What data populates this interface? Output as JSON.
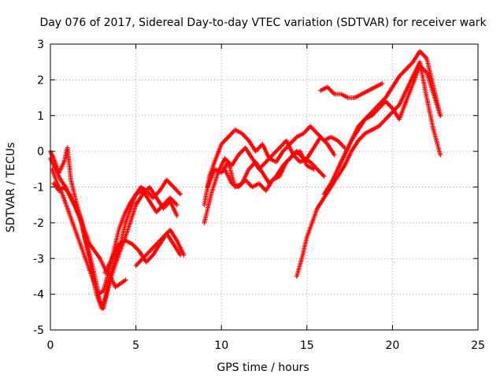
{
  "chart_data": {
    "type": "scatter",
    "title": "Day 076 of 2017, Sidereal Day-to-day VTEC variation (SDTVAR) for receiver wark",
    "xlabel": "GPS time / hours",
    "ylabel": "SDTVAR / TECUs",
    "xlim": [
      0,
      25
    ],
    "ylim": [
      -5,
      3
    ],
    "xticks": [
      0,
      5,
      10,
      15,
      20,
      25
    ],
    "yticks": [
      -5,
      -4,
      -3,
      -2,
      -1,
      0,
      1,
      2,
      3
    ],
    "grid": true,
    "marker": "+",
    "color": "#ff0000",
    "series": [
      {
        "x": [
          0.0,
          0.3,
          0.6,
          0.9,
          1.2,
          1.5,
          1.8,
          2.1,
          2.4,
          2.7,
          3.0,
          3.2,
          3.5,
          3.8,
          4.1,
          4.4,
          4.7,
          5.0,
          5.3,
          5.6,
          6.0,
          6.4,
          6.8,
          7.2,
          7.6
        ],
        "y": [
          -0.2,
          -0.5,
          -0.8,
          -1.0,
          -1.3,
          -1.6,
          -2.0,
          -2.6,
          -3.3,
          -4.0,
          -4.4,
          -4.1,
          -3.5,
          -3.0,
          -2.6,
          -2.0,
          -1.6,
          -1.2,
          -1.0,
          -1.1,
          -1.3,
          -1.1,
          -0.8,
          -1.0,
          -1.2
        ]
      },
      {
        "x": [
          0.0,
          0.2,
          0.5,
          0.8,
          1.0,
          1.2,
          1.5,
          1.8,
          2.0,
          2.3,
          2.6,
          2.9,
          3.1,
          3.4,
          3.7,
          4.0,
          4.3,
          4.6,
          5.0,
          5.4,
          5.8,
          6.2,
          6.6,
          7.0,
          7.4
        ],
        "y": [
          0.0,
          -0.2,
          -0.6,
          -0.3,
          0.1,
          -0.8,
          -1.4,
          -1.9,
          -2.4,
          -2.9,
          -3.5,
          -4.2,
          -4.4,
          -3.8,
          -3.3,
          -2.9,
          -2.5,
          -2.1,
          -1.5,
          -1.2,
          -1.0,
          -1.3,
          -1.6,
          -1.4,
          -1.8
        ]
      },
      {
        "x": [
          0.1,
          0.4,
          0.7,
          1.0,
          1.3,
          1.6,
          1.9,
          2.2,
          2.5,
          2.8,
          3.1,
          3.4,
          3.7,
          4.0,
          4.3,
          4.6,
          5.0,
          5.4,
          5.8,
          6.2,
          6.6,
          7.0,
          7.4
        ],
        "y": [
          -0.5,
          -0.9,
          -1.2,
          -1.6,
          -2.0,
          -2.4,
          -2.8,
          -3.2,
          -3.6,
          -4.0,
          -3.9,
          -3.4,
          -2.8,
          -2.2,
          -1.8,
          -1.5,
          -1.2,
          -1.1,
          -1.4,
          -1.7,
          -1.5,
          -1.3,
          -1.5
        ]
      },
      {
        "x": [
          3.2,
          3.6,
          4.0,
          4.4,
          4.8,
          5.2,
          5.6,
          6.0,
          6.4,
          6.8,
          7.2,
          7.6
        ],
        "y": [
          -3.4,
          -3.0,
          -2.6,
          -2.5,
          -2.6,
          -2.8,
          -3.1,
          -2.9,
          -2.6,
          -2.3,
          -2.6,
          -2.9
        ]
      },
      {
        "x": [
          0.2,
          0.5,
          0.8,
          1.1,
          1.4,
          1.7,
          2.0,
          2.3,
          2.6,
          2.9,
          3.2,
          3.5,
          3.8,
          4.1,
          4.4
        ],
        "y": [
          -0.9,
          -1.1,
          -1.0,
          -1.2,
          -1.5,
          -1.8,
          -2.2,
          -2.6,
          -2.8,
          -3.0,
          -3.3,
          -3.5,
          -3.8,
          -3.7,
          -3.6
        ]
      },
      {
        "x": [
          5.0,
          5.4,
          5.8,
          6.2,
          6.6,
          7.0,
          7.4,
          7.8
        ],
        "y": [
          -3.2,
          -3.0,
          -2.8,
          -2.6,
          -2.4,
          -2.2,
          -2.5,
          -2.9
        ]
      },
      {
        "x": [
          9.0,
          9.3,
          9.6,
          10.0,
          10.4,
          10.8,
          11.2,
          11.6,
          12.0,
          12.4,
          12.8,
          13.2,
          13.6,
          14.0,
          14.4,
          14.8,
          15.2,
          15.6,
          16.0,
          16.4,
          16.8,
          17.2
        ],
        "y": [
          -1.5,
          -0.7,
          -0.3,
          0.2,
          0.4,
          0.6,
          0.5,
          0.3,
          0.0,
          0.2,
          -0.2,
          -0.3,
          0.0,
          0.2,
          0.4,
          0.5,
          0.7,
          0.5,
          0.3,
          0.4,
          0.3,
          0.1
        ]
      },
      {
        "x": [
          9.0,
          9.4,
          9.8,
          10.2,
          10.6,
          11.0,
          11.4,
          11.8,
          12.2,
          12.6,
          13.0,
          13.4,
          13.8,
          14.2,
          14.6,
          15.0,
          15.4,
          15.8,
          16.2,
          16.6
        ],
        "y": [
          -2.0,
          -1.2,
          -0.6,
          -0.2,
          -0.4,
          -0.1,
          0.1,
          -0.2,
          -0.5,
          -0.3,
          -0.1,
          0.1,
          0.3,
          -0.1,
          -0.3,
          -0.2,
          0.1,
          0.4,
          0.2,
          -0.1
        ]
      },
      {
        "x": [
          9.2,
          9.6,
          10.0,
          10.4,
          10.8,
          11.2,
          11.6,
          12.0,
          12.4,
          12.8,
          13.2,
          13.6,
          14.0,
          14.4,
          14.8,
          15.2,
          15.6,
          16.0
        ],
        "y": [
          -1.0,
          -0.5,
          -0.6,
          -0.3,
          -1.0,
          -0.9,
          -0.5,
          -0.3,
          -0.6,
          -0.9,
          -0.7,
          -0.4,
          -0.2,
          0.0,
          -0.2,
          -0.3,
          -0.5,
          -0.7
        ]
      },
      {
        "x": [
          10.2,
          10.6,
          11.0,
          11.4,
          11.8,
          12.2,
          12.6,
          13.0,
          13.4,
          13.8,
          14.2,
          14.6,
          15.0,
          15.4
        ],
        "y": [
          -0.5,
          -0.9,
          -1.0,
          -0.8,
          -1.0,
          -0.9,
          -1.1,
          -0.8,
          -0.7,
          -0.3,
          -0.1,
          0.0,
          -0.4,
          -0.5
        ]
      },
      {
        "x": [
          14.4,
          14.7,
          15.0,
          15.3,
          15.6,
          16.0,
          16.4,
          16.8,
          17.2,
          17.6,
          18.0,
          18.4,
          18.8,
          19.2,
          19.6,
          20.0,
          20.4,
          20.8,
          21.2,
          21.6,
          22.0,
          22.4,
          22.8
        ],
        "y": [
          -3.5,
          -3.0,
          -2.4,
          -2.0,
          -1.6,
          -1.3,
          -1.0,
          -0.7,
          -0.4,
          0.0,
          0.3,
          0.5,
          0.6,
          0.7,
          0.9,
          1.1,
          1.3,
          1.7,
          2.1,
          2.5,
          1.5,
          0.6,
          -0.1
        ]
      },
      {
        "x": [
          16.0,
          16.4,
          16.8,
          17.2,
          17.6,
          18.0,
          18.4,
          18.8,
          19.2,
          19.6,
          20.0,
          20.4,
          20.8,
          21.2,
          21.6,
          22.0,
          22.4,
          22.8
        ],
        "y": [
          -1.2,
          -0.9,
          -0.5,
          -0.1,
          0.3,
          0.6,
          0.9,
          1.1,
          1.3,
          1.5,
          1.8,
          2.1,
          2.3,
          2.5,
          2.8,
          2.6,
          1.8,
          1.0
        ]
      },
      {
        "x": [
          15.8,
          16.2,
          16.6,
          17.0,
          17.4,
          17.8,
          18.2,
          18.6,
          19.0,
          19.4
        ],
        "y": [
          1.7,
          1.8,
          1.6,
          1.6,
          1.5,
          1.5,
          1.6,
          1.7,
          1.8,
          1.9
        ]
      },
      {
        "x": [
          16.8,
          17.2,
          17.6,
          18.0,
          18.4,
          18.8,
          19.2,
          19.6,
          20.0,
          20.4,
          20.8,
          21.2,
          21.6,
          22.0,
          22.4,
          22.8
        ],
        "y": [
          -0.5,
          -0.1,
          0.3,
          0.7,
          0.9,
          1.0,
          1.2,
          1.4,
          1.2,
          0.9,
          1.4,
          1.9,
          2.4,
          2.2,
          1.6,
          1.0
        ]
      }
    ]
  }
}
